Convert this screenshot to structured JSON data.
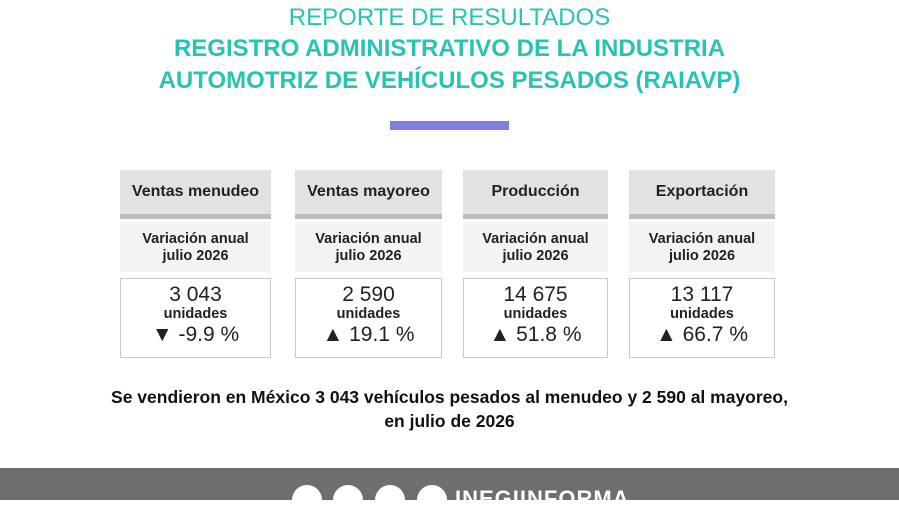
{
  "header": {
    "title": "REPORTE DE RESULTADOS",
    "subtitle_lines": [
      "REGISTRO ADMINISTRATIVO DE LA INDUSTRIA",
      "AUTOMOTRIZ DE VEHÍCULOS PESADOS (RAIAVP)"
    ]
  },
  "cards": [
    {
      "title": "Ventas menudeo",
      "subtitle": [
        "Variación anual",
        "julio 2026"
      ],
      "value": "3 043",
      "unit": "unidades",
      "change": "▼ -9.9 %"
    },
    {
      "title": "Ventas mayoreo",
      "subtitle": [
        "Variación anual",
        "julio 2026"
      ],
      "value": "2 590",
      "unit": "unidades",
      "change": "▲ 19.1 %"
    },
    {
      "title": "Producción",
      "subtitle": [
        "Variación anual",
        "julio 2026"
      ],
      "value": "14 675",
      "unit": "unidades",
      "change": "▲ 51.8 %"
    },
    {
      "title": "Exportación",
      "subtitle": [
        "Variación anual",
        "julio 2026"
      ],
      "value": "13 117",
      "unit": "unidades",
      "change": "▲ 66.7 %"
    }
  ],
  "summary": [
    "Se vendieron en México 3 043 vehículos pesados al menudeo y 2 590 al mayoreo,",
    "en julio de 2026"
  ],
  "footer": {
    "brand": "INEGIINFORMA"
  }
}
